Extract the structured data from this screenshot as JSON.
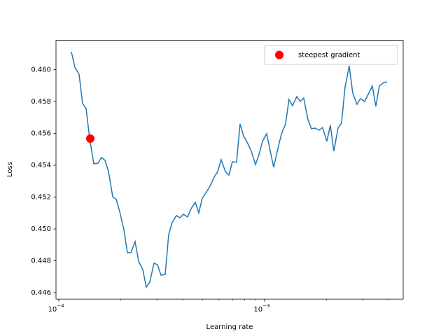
{
  "chart_data": {
    "type": "line",
    "xlabel": "Learning rate",
    "ylabel": "Loss",
    "xscale": "log",
    "xlim": [
      9.69e-05,
      0.00472
    ],
    "ylim": [
      0.4456,
      0.46184
    ],
    "xticks": [
      {
        "value": 0.0001,
        "label": "10",
        "exponent": "−4"
      },
      {
        "value": 0.001,
        "label": "10",
        "exponent": "−3"
      }
    ],
    "xminorticks": [
      0.0002,
      0.0003,
      0.0004,
      0.0005,
      0.0006,
      0.0007,
      0.0008,
      0.0009,
      0.002,
      0.003,
      0.004
    ],
    "yticks": [
      0.446,
      0.448,
      {
        "value": 0.45,
        "label": "0.450"
      },
      0.452,
      0.454,
      0.456,
      0.458,
      {
        "value": 0.46,
        "label": "0.460"
      }
    ],
    "legend": "upper right",
    "series": [
      {
        "color": "#1f77b4",
        "x": [
          0.0001151,
          0.0001197,
          0.0001255,
          0.0001305,
          0.0001357,
          0.0001411,
          0.0001479,
          0.000155,
          0.0001612,
          0.0001677,
          0.0001744,
          0.0001828,
          0.0001901,
          0.0001976,
          0.0002072,
          0.0002154,
          0.000224,
          0.0002348,
          0.0002442,
          0.0002559,
          0.0002662,
          0.0002768,
          0.0002901,
          0.0003017,
          0.0003137,
          0.0003289,
          0.000342,
          0.0003556,
          0.0003728,
          0.0003877,
          0.0004032,
          0.0004225,
          0.0004394,
          0.0004606,
          0.0004789,
          0.0004981,
          0.0005221,
          0.0005429,
          0.000569,
          0.0005918,
          0.0006154,
          0.0006451,
          0.0006709,
          0.0006976,
          0.0007311,
          0.0007603,
          0.0007907,
          0.0008288,
          0.0008619,
          0.0009034,
          0.0009394,
          0.0009768,
          0.001024,
          0.001065,
          0.001107,
          0.00116,
          0.001206,
          0.001265,
          0.001315,
          0.001368,
          0.001434,
          0.001491,
          0.00155,
          0.001625,
          0.00169,
          0.001758,
          0.001842,
          0.001915,
          0.002008,
          0.002088,
          0.002171,
          0.002276,
          0.002367,
          0.002461,
          0.00258,
          0.002683,
          0.002812,
          0.002924,
          0.003065,
          0.003187,
          0.003341,
          0.003474,
          0.003613,
          0.003787,
          0.003938
        ],
        "values": [
          0.46112,
          0.46015,
          0.45971,
          0.45787,
          0.45756,
          0.45571,
          0.45409,
          0.45413,
          0.45448,
          0.45431,
          0.4536,
          0.45202,
          0.45185,
          0.4511,
          0.44996,
          0.44851,
          0.44851,
          0.44921,
          0.44798,
          0.44745,
          0.44635,
          0.44666,
          0.44785,
          0.44776,
          0.4471,
          0.44714,
          0.44965,
          0.4504,
          0.45084,
          0.4507,
          0.45092,
          0.45075,
          0.45127,
          0.45167,
          0.45101,
          0.45193,
          0.45233,
          0.45268,
          0.45325,
          0.4536,
          0.45435,
          0.4536,
          0.45338,
          0.45422,
          0.45418,
          0.45659,
          0.45585,
          0.45536,
          0.45488,
          0.45404,
          0.45466,
          0.45549,
          0.45598,
          0.45492,
          0.45387,
          0.45501,
          0.45593,
          0.45659,
          0.45813,
          0.45774,
          0.45831,
          0.458,
          0.45822,
          0.45686,
          0.45629,
          0.45633,
          0.4562,
          0.45637,
          0.45549,
          0.45651,
          0.45488,
          0.45633,
          0.45664,
          0.45888,
          0.46024,
          0.45853,
          0.45782,
          0.45818,
          0.458,
          0.45844,
          0.45897,
          0.45769,
          0.45897,
          0.45919,
          0.45923
        ]
      }
    ],
    "points": {
      "name": "steepest gradient",
      "color": "red",
      "x": [
        0.0001422
      ],
      "values": [
        0.45567
      ]
    }
  }
}
